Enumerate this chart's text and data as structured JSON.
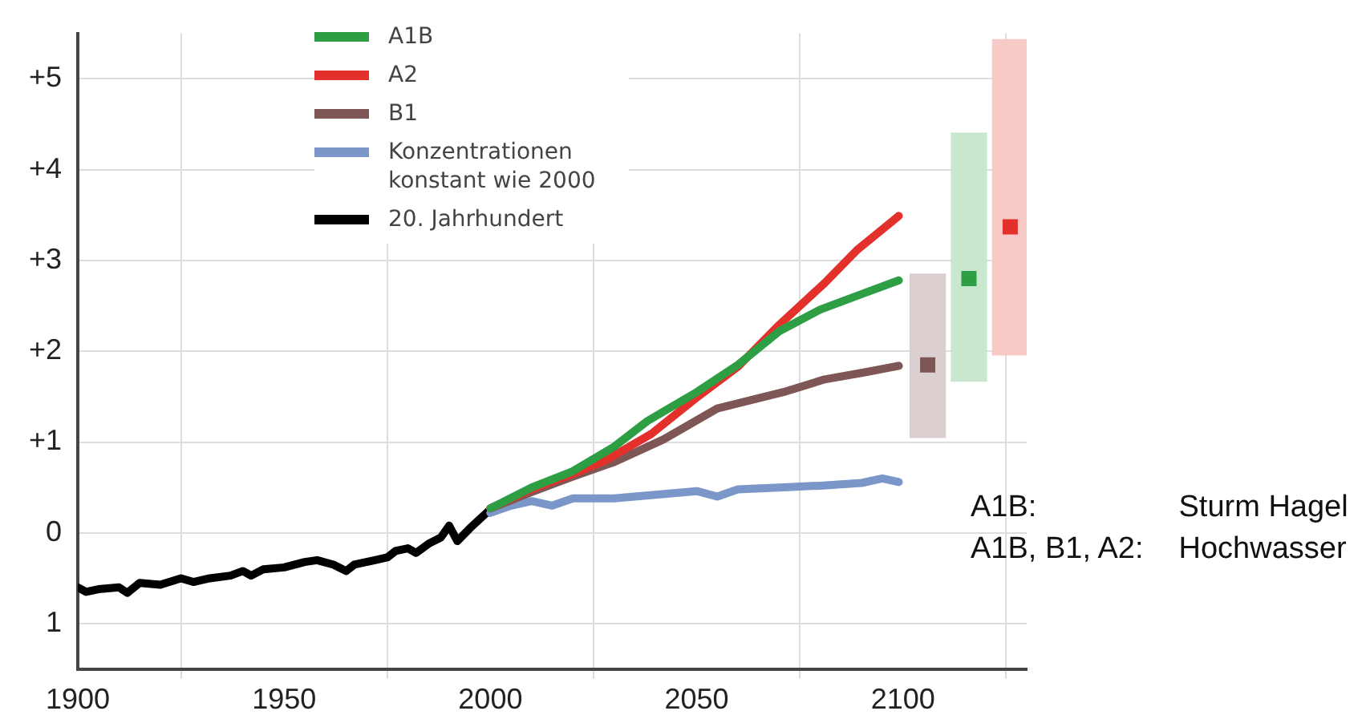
{
  "chart_data": {
    "type": "line",
    "xlim": [
      1900,
      2130
    ],
    "xticks": [
      1900,
      1950,
      2000,
      2050,
      2100
    ],
    "ylim": [
      -1.5,
      5.5
    ],
    "yticks": [
      {
        "value": 5,
        "label": "+5"
      },
      {
        "value": 4,
        "label": "+4"
      },
      {
        "value": 3,
        "label": "+3"
      },
      {
        "value": 2,
        "label": "+2"
      },
      {
        "value": 1,
        "label": "+1"
      },
      0,
      {
        "value": -1,
        "label": "1"
      }
    ],
    "grid": true,
    "legend": "top",
    "marker": "none",
    "series": [
      {
        "name": "A1B",
        "color": "#2e9e44",
        "x": [
          2000,
          2010,
          2020,
          2030,
          2038,
          2050,
          2060,
          2070,
          2080,
          2090,
          2099
        ],
        "values": [
          0.27,
          0.5,
          0.68,
          0.95,
          1.23,
          1.55,
          1.85,
          2.22,
          2.46,
          2.63,
          2.78
        ]
      },
      {
        "name": "A2",
        "color": "#e3302a",
        "x": [
          2000,
          2010,
          2020,
          2028,
          2039,
          2050,
          2060,
          2070,
          2081,
          2089,
          2099
        ],
        "values": [
          0.27,
          0.48,
          0.65,
          0.8,
          1.09,
          1.49,
          1.83,
          2.29,
          2.75,
          3.12,
          3.49
        ]
      },
      {
        "name": "B1",
        "color": "#7f5656",
        "x": [
          2000,
          2010,
          2020,
          2030,
          2042,
          2055,
          2071,
          2081,
          2091,
          2099
        ],
        "values": [
          0.27,
          0.45,
          0.62,
          0.78,
          1.03,
          1.37,
          1.55,
          1.69,
          1.77,
          1.84
        ]
      },
      {
        "name": "Konzentrationen konstant wie 2000",
        "color": "#7b96c8",
        "x": [
          2000,
          2005,
          2010,
          2015,
          2020,
          2030,
          2040,
          2050,
          2055,
          2060,
          2070,
          2080,
          2090,
          2095,
          2099
        ],
        "values": [
          0.22,
          0.3,
          0.35,
          0.3,
          0.38,
          0.38,
          0.42,
          0.46,
          0.4,
          0.48,
          0.5,
          0.52,
          0.55,
          0.6,
          0.56
        ]
      },
      {
        "name": "20. Jahrhundert",
        "color": "#000000",
        "x": [
          1900,
          1902,
          1905,
          1910,
          1912,
          1915,
          1920,
          1925,
          1928,
          1932,
          1937,
          1940,
          1942,
          1945,
          1950,
          1955,
          1958,
          1962,
          1965,
          1967,
          1972,
          1975,
          1977,
          1980,
          1982,
          1985,
          1988,
          1990,
          1992,
          1995,
          2000
        ],
        "values": [
          -0.6,
          -0.65,
          -0.62,
          -0.6,
          -0.66,
          -0.55,
          -0.57,
          -0.5,
          -0.54,
          -0.5,
          -0.47,
          -0.42,
          -0.47,
          -0.4,
          -0.38,
          -0.32,
          -0.3,
          -0.35,
          -0.42,
          -0.35,
          -0.3,
          -0.27,
          -0.2,
          -0.17,
          -0.22,
          -0.12,
          -0.05,
          0.08,
          -0.09,
          0.05,
          0.26
        ]
      },
      {
        "type": "bar",
        "color": "#dccfcf",
        "x": [
          2106
        ],
        "base": [
          1.05
        ],
        "values": [
          1.8
        ]
      },
      {
        "type": "bar",
        "color": "#c9e6cf",
        "x": [
          2116
        ],
        "base": [
          1.67
        ],
        "values": [
          2.73
        ]
      },
      {
        "type": "bar",
        "color": "#f7c9c7",
        "x": [
          2126
        ],
        "base": [
          1.96
        ],
        "values": [
          3.47
        ]
      },
      {
        "type": "scatter",
        "color": "#7f5656",
        "x": [
          2106
        ],
        "values": [
          1.85
        ],
        "marker": "square"
      },
      {
        "type": "scatter",
        "color": "#2e9e44",
        "x": [
          2116
        ],
        "values": [
          2.8
        ],
        "marker": "square"
      },
      {
        "type": "scatter",
        "color": "#e3302a",
        "x": [
          2126
        ],
        "values": [
          3.37
        ],
        "marker": "square"
      }
    ],
    "annotations": [
      "A1B:",
      "Sturm Hagel",
      "A1B, B1, A2:",
      "Hochwasser"
    ]
  }
}
